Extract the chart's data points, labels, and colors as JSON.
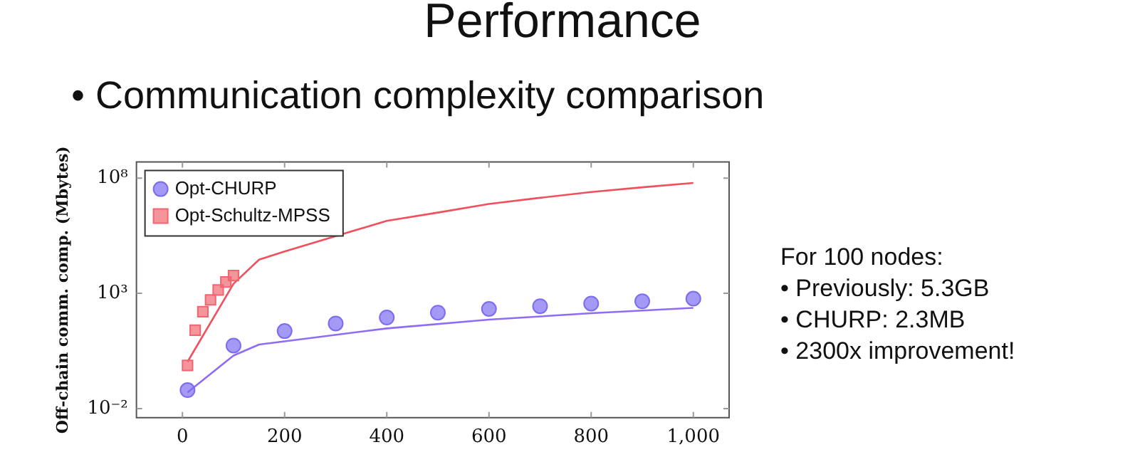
{
  "chart_data": {
    "type": "scatter",
    "title": "Performance",
    "subtitle": "• Communication complexity comparison",
    "ylabel": "Off-chain comm. comp. (Mbytes)",
    "annotations": [
      "For 100 nodes:",
      "• Previously: 5.3GB",
      "• CHURP: 2.3MB",
      "• 2300x improvement!"
    ],
    "log": "y",
    "legend": "top left",
    "grid": false,
    "xlim": [
      -90,
      1070
    ],
    "xticks": [
      0,
      200,
      400,
      600,
      800,
      {
        "value": 1000,
        "label": "1,000"
      }
    ],
    "ylim": [
      0.004,
      500000000
    ],
    "yticks": [
      {
        "value": 0.01,
        "label": "10⁻²"
      },
      {
        "value": 1000,
        "label": "10³"
      },
      {
        "value": 100000000,
        "label": "10⁸"
      }
    ],
    "series": [
      {
        "name": "Opt-CHURP",
        "marker": "circle",
        "color": "#7b6cf0",
        "x": [
          10,
          100,
          200,
          300,
          400,
          500,
          600,
          700,
          800,
          900,
          1000
        ],
        "values": [
          0.063,
          5.4,
          23,
          49,
          89,
          145,
          210,
          275,
          360,
          450,
          590
        ]
      },
      {
        "name": "Opt-Schultz-MPSS",
        "marker": "square",
        "color": "#f26470",
        "x": [
          10,
          25,
          40,
          55,
          70,
          85,
          100
        ],
        "values": [
          0.74,
          25,
          160,
          520,
          1400,
          3100,
          5900
        ]
      },
      {
        "type": "line",
        "marker": "none",
        "color": "#8f6cf5",
        "x": [
          10,
          100,
          150,
          200,
          400,
          600,
          800,
          1000
        ],
        "values": [
          0.05,
          2,
          6,
          8.3,
          30,
          72,
          137,
          234
        ]
      },
      {
        "type": "line",
        "marker": "none",
        "color": "#f0505e",
        "x": [
          10,
          100,
          150,
          200,
          400,
          500,
          600,
          700,
          800,
          900,
          1000
        ],
        "values": [
          1.07,
          2600,
          29000,
          66000,
          1400000,
          3200000,
          7600000,
          14000000,
          25000000,
          40000000,
          62000000
        ]
      }
    ]
  }
}
